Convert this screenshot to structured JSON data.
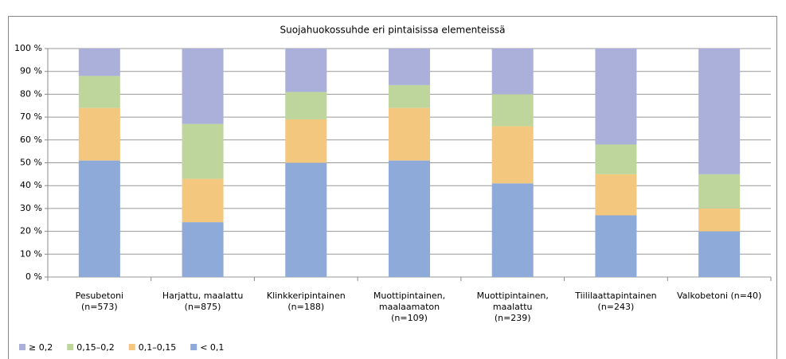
{
  "chart_data": {
    "type": "stacked_bar",
    "title": "Suojahuokossuhde eri pintaisissa elementeissä",
    "categories": [
      [
        "Pesubetoni",
        "(n=573)"
      ],
      [
        "Harjattu, maalattu",
        "(n=875)"
      ],
      [
        "Klinkkeripintainen",
        "(n=188)"
      ],
      [
        "Muottipintainen,",
        "maalaamaton",
        "(n=109)"
      ],
      [
        "Muottipintainen,",
        "maalattu",
        "(n=239)"
      ],
      [
        "Tiililaattapintainen",
        "(n=243)"
      ],
      [
        "Valkobetoni (n=40)"
      ]
    ],
    "series": [
      {
        "name": "< 0,1",
        "color": "#8eaad9",
        "values": [
          51,
          24,
          50,
          51,
          41,
          27,
          20
        ]
      },
      {
        "name": "0,1–0,15",
        "color": "#f4c77e",
        "values": [
          23,
          19,
          19,
          23,
          25,
          18,
          10
        ]
      },
      {
        "name": "0,15–0,2",
        "color": "#bed69c",
        "values": [
          14,
          24,
          12,
          10,
          14,
          13,
          15
        ]
      },
      {
        "name": "≥ 0,2",
        "color": "#aab0da",
        "values": [
          12,
          33,
          19,
          16,
          20,
          42,
          55
        ]
      }
    ],
    "ylim": [
      0,
      100
    ],
    "yticks": [
      {
        "value": 0,
        "label": "0 %"
      },
      {
        "value": 10,
        "label": "10 %"
      },
      {
        "value": 20,
        "label": "20 %"
      },
      {
        "value": 30,
        "label": "30 %"
      },
      {
        "value": 40,
        "label": "40 %"
      },
      {
        "value": 50,
        "label": "50 %"
      },
      {
        "value": 60,
        "label": "60 %"
      },
      {
        "value": 70,
        "label": "70 %"
      },
      {
        "value": 80,
        "label": "80 %"
      },
      {
        "value": 90,
        "label": "90 %"
      },
      {
        "value": 100,
        "label": "100 %"
      }
    ],
    "grid": true,
    "legend": "bottom"
  }
}
